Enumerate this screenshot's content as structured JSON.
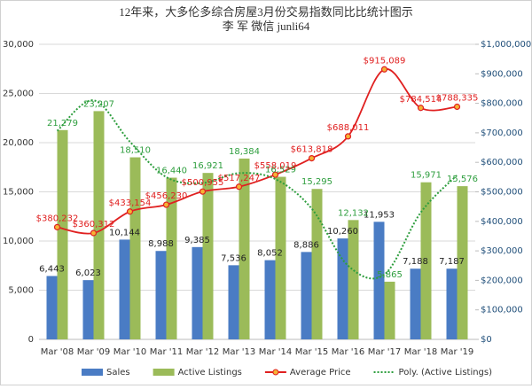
{
  "chart_data": {
    "type": "combo",
    "title": "12年来，大多伦多综合房屋3月份交易指数同比比统计图示",
    "subtitle": "李 军 微信 junli64",
    "categories": [
      "Mar '08",
      "Mar '09",
      "Mar '10",
      "Mar '11",
      "Mar '12",
      "Mar '13",
      "Mar '14",
      "Mar '15",
      "Mar '16",
      "Mar '17",
      "Mar '18",
      "Mar '19"
    ],
    "ylim": [
      0,
      30000
    ],
    "yticks": [
      0,
      {
        "value": 5000,
        "label": "5,000"
      },
      {
        "value": 10000,
        "label": "10,000"
      },
      {
        "value": 15000,
        "label": "15,000"
      },
      {
        "value": 20000,
        "label": "20,000"
      },
      {
        "value": 25000,
        "label": "25,000"
      },
      {
        "value": 30000,
        "label": "30,000"
      }
    ],
    "y2lim": [
      0,
      1000000
    ],
    "y2ticks": [
      {
        "value": 0,
        "label": "$0"
      },
      {
        "value": 100000,
        "label": "$100,000"
      },
      {
        "value": 200000,
        "label": "$200,000"
      },
      {
        "value": 300000,
        "label": "$300,000"
      },
      {
        "value": 400000,
        "label": "$400,000"
      },
      {
        "value": 500000,
        "label": "$500,000"
      },
      {
        "value": 600000,
        "label": "$600,000"
      },
      {
        "value": 700000,
        "label": "$700,000"
      },
      {
        "value": 800000,
        "label": "$800,000"
      },
      {
        "value": 900000,
        "label": "$900,000"
      },
      {
        "value": 1000000,
        "label": "$1,000,000"
      }
    ],
    "grid": true,
    "legend": "bottom",
    "series": [
      {
        "name": "Sales",
        "type": "bar",
        "color": "#4a7cc4",
        "label_color": "#222222",
        "values": [
          6443,
          6023,
          10144,
          8988,
          9385,
          7536,
          8052,
          8886,
          10260,
          11953,
          7188,
          7187
        ],
        "value_labels": [
          "6,443",
          "6,023",
          "10,144",
          "8,988",
          "9,385",
          "7,536",
          "8,052",
          "8,886",
          "10,260",
          "11,953",
          "7,188",
          "7,187"
        ]
      },
      {
        "name": "Active Listings",
        "type": "bar",
        "color": "#9bbb59",
        "label_color": "#2e9e3e",
        "values": [
          21279,
          23207,
          18510,
          16440,
          16921,
          18384,
          16529,
          15295,
          12132,
          5865,
          15971,
          15576
        ],
        "value_labels": [
          "21,279",
          "23,207",
          "18,510",
          "16,440",
          "16,921",
          "18,384",
          "16,529",
          "15,295",
          "12,132",
          "5,865",
          "15,971",
          "15,576"
        ]
      },
      {
        "name": "Average Price",
        "type": "line",
        "axis": "y2",
        "color": "#e02020",
        "marker_color": "#f5b335",
        "label_color": "#e02020",
        "values": [
          380232,
          360312,
          433154,
          456230,
          500955,
          517247,
          558019,
          613818,
          688011,
          915089,
          784514,
          788335
        ],
        "value_labels": [
          "$380,232",
          "$360,312",
          "$433,154",
          "$456,230",
          "$500,955",
          "$517,247",
          "$558,019",
          "$613,818",
          "$688,011",
          "$915,089",
          "$784,514",
          "$788,335"
        ]
      },
      {
        "name": "Poly. (Active Listings)",
        "type": "line",
        "style": "dotted",
        "color": "#2e9e3e",
        "values": [
          21200,
          24300,
          20100,
          16500,
          15900,
          16900,
          16300,
          13300,
          7500,
          6600,
          12900,
          16700
        ]
      }
    ]
  }
}
